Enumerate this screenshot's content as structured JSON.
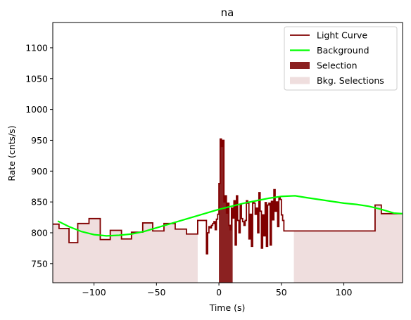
{
  "chart_data": {
    "type": "line",
    "title": "na",
    "xlabel": "Time (s)",
    "ylabel": "Rate (cnts/s)",
    "xlim": [
      -133,
      147
    ],
    "ylim": [
      719,
      1141
    ],
    "xticks": [
      -100,
      -50,
      0,
      50,
      100
    ],
    "xtick_labels": [
      "−100",
      "−50",
      "0",
      "50",
      "100"
    ],
    "yticks": [
      750,
      800,
      850,
      900,
      950,
      1000,
      1050,
      1100
    ],
    "ytick_labels": [
      "750",
      "800",
      "850",
      "900",
      "950",
      "1000",
      "1050",
      "1100"
    ],
    "grid": false,
    "legend": {
      "position": "upper right",
      "entries": [
        {
          "label": "Light Curve",
          "kind": "line",
          "color": "#800000"
        },
        {
          "label": "Background",
          "kind": "line",
          "color": "#00ff00"
        },
        {
          "label": "Selection",
          "kind": "patch",
          "color": "#8b2121"
        },
        {
          "label": "Bkg. Selections",
          "kind": "patch",
          "color": "#efdede"
        }
      ]
    },
    "light_curve": {
      "name": "Light Curve",
      "color": "#800000",
      "edges": [
        -133,
        -128,
        -120,
        -113,
        -104,
        -95,
        -87,
        -78,
        -70,
        -61,
        -53,
        -44,
        -35,
        -26,
        -17,
        -10,
        -9,
        -8,
        -7,
        -6,
        -5,
        -4,
        -3,
        -2,
        -1,
        0,
        1,
        2,
        3,
        4,
        5,
        6,
        7,
        8,
        9,
        10,
        11,
        12,
        13,
        14,
        15,
        16,
        17,
        18,
        19,
        20,
        21,
        22,
        23,
        24,
        25,
        26,
        27,
        28,
        29,
        30,
        31,
        32,
        33,
        34,
        35,
        36,
        37,
        38,
        39,
        40,
        41,
        42,
        43,
        44,
        45,
        46,
        47,
        48,
        49,
        50,
        51,
        52,
        53,
        54,
        55,
        56,
        57,
        58,
        59,
        60,
        61,
        62,
        63,
        64,
        65,
        66,
        67,
        68,
        69,
        70,
        71,
        72,
        73,
        74,
        75,
        76,
        77,
        78,
        79,
        80,
        81,
        82,
        83,
        84,
        85,
        86,
        87,
        88,
        89,
        90,
        91,
        92,
        93,
        94,
        95,
        96,
        97,
        98,
        99,
        100,
        101,
        102,
        103,
        104,
        105,
        106,
        107,
        108,
        109,
        110,
        111,
        112,
        113,
        114,
        115,
        116,
        117,
        118,
        119,
        120,
        121,
        122,
        123,
        124,
        125,
        130,
        139,
        147
      ],
      "values": [
        814,
        807,
        784,
        815,
        823,
        789,
        804,
        790,
        801,
        816,
        803,
        815,
        806,
        798,
        820,
        766,
        800,
        810,
        808,
        812,
        815,
        818,
        805,
        822,
        830,
        880,
        952,
        940,
        950,
        850,
        860,
        832,
        848,
        812,
        805,
        840,
        824,
        852,
        780,
        860,
        820,
        800,
        845,
        823,
        818,
        812,
        820,
        852,
        848,
        790,
        830,
        778,
        850,
        848,
        830,
        840,
        800,
        865,
        835,
        775,
        829,
        795,
        849,
        778,
        845,
        848,
        780,
        851,
        821,
        870,
        835,
        850,
        810,
        858,
        854,
        829,
        820,
        803,
        803,
        803,
        803,
        803,
        803,
        803,
        803,
        803,
        803,
        803,
        803,
        803,
        803,
        803,
        803,
        803,
        803,
        803,
        803,
        803,
        803,
        803,
        803,
        803,
        803,
        803,
        803,
        803,
        803,
        803,
        803,
        803,
        803,
        803,
        803,
        803,
        803,
        803,
        803,
        803,
        803,
        803,
        803,
        803,
        803,
        803,
        803,
        803,
        803,
        803,
        803,
        803,
        803,
        803,
        803,
        803,
        803,
        803,
        803,
        803,
        803,
        803,
        803,
        803,
        803,
        803,
        803,
        803,
        803,
        803,
        803,
        803,
        845,
        831,
        831
      ]
    },
    "background": {
      "name": "Background",
      "color": "#00ff00",
      "x": [
        -129,
        -120,
        -110,
        -100,
        -90,
        -80,
        -70,
        -60,
        -50,
        -40,
        -30,
        -20,
        -10,
        0,
        10,
        20,
        30,
        40,
        50,
        61,
        70,
        80,
        90,
        100,
        110,
        120,
        130,
        140,
        147
      ],
      "y": [
        819,
        810,
        802,
        797,
        795,
        796,
        798,
        802,
        808,
        814,
        820,
        826,
        832,
        838,
        843,
        848,
        852,
        856,
        859,
        860,
        857,
        854,
        851,
        848,
        846,
        843,
        838,
        832,
        831
      ]
    },
    "selection": {
      "name": "Selection",
      "color": "#8b2121",
      "x_range": [
        0,
        11
      ]
    },
    "bkg_selections": {
      "name": "Bkg. Selections",
      "color": "#efdede",
      "regions": [
        [
          -133,
          -17
        ],
        [
          60,
          147
        ]
      ]
    }
  }
}
